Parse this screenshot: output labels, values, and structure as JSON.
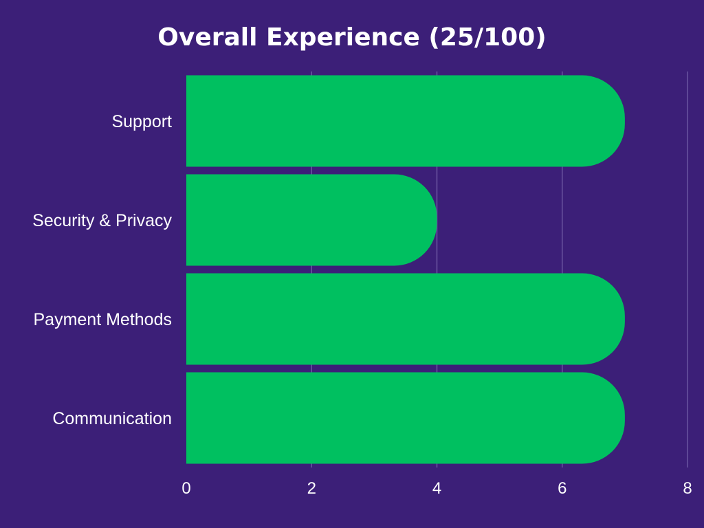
{
  "colors": {
    "background": "#3c1f78",
    "bar": "#00c060",
    "grid": "#6a55a0",
    "text": "#ffffff"
  },
  "chart_data": {
    "type": "bar",
    "orientation": "horizontal",
    "title": "Overall Experience (25/100)",
    "categories": [
      "Support",
      "Security & Privacy",
      "Payment Methods",
      "Communication"
    ],
    "values": [
      7,
      4,
      7,
      7
    ],
    "xlim": [
      0,
      8
    ],
    "x_ticks": [
      "0",
      "2",
      "4",
      "6",
      "8"
    ],
    "xlabel": "",
    "ylabel": "",
    "grid": true,
    "legend": "none"
  }
}
